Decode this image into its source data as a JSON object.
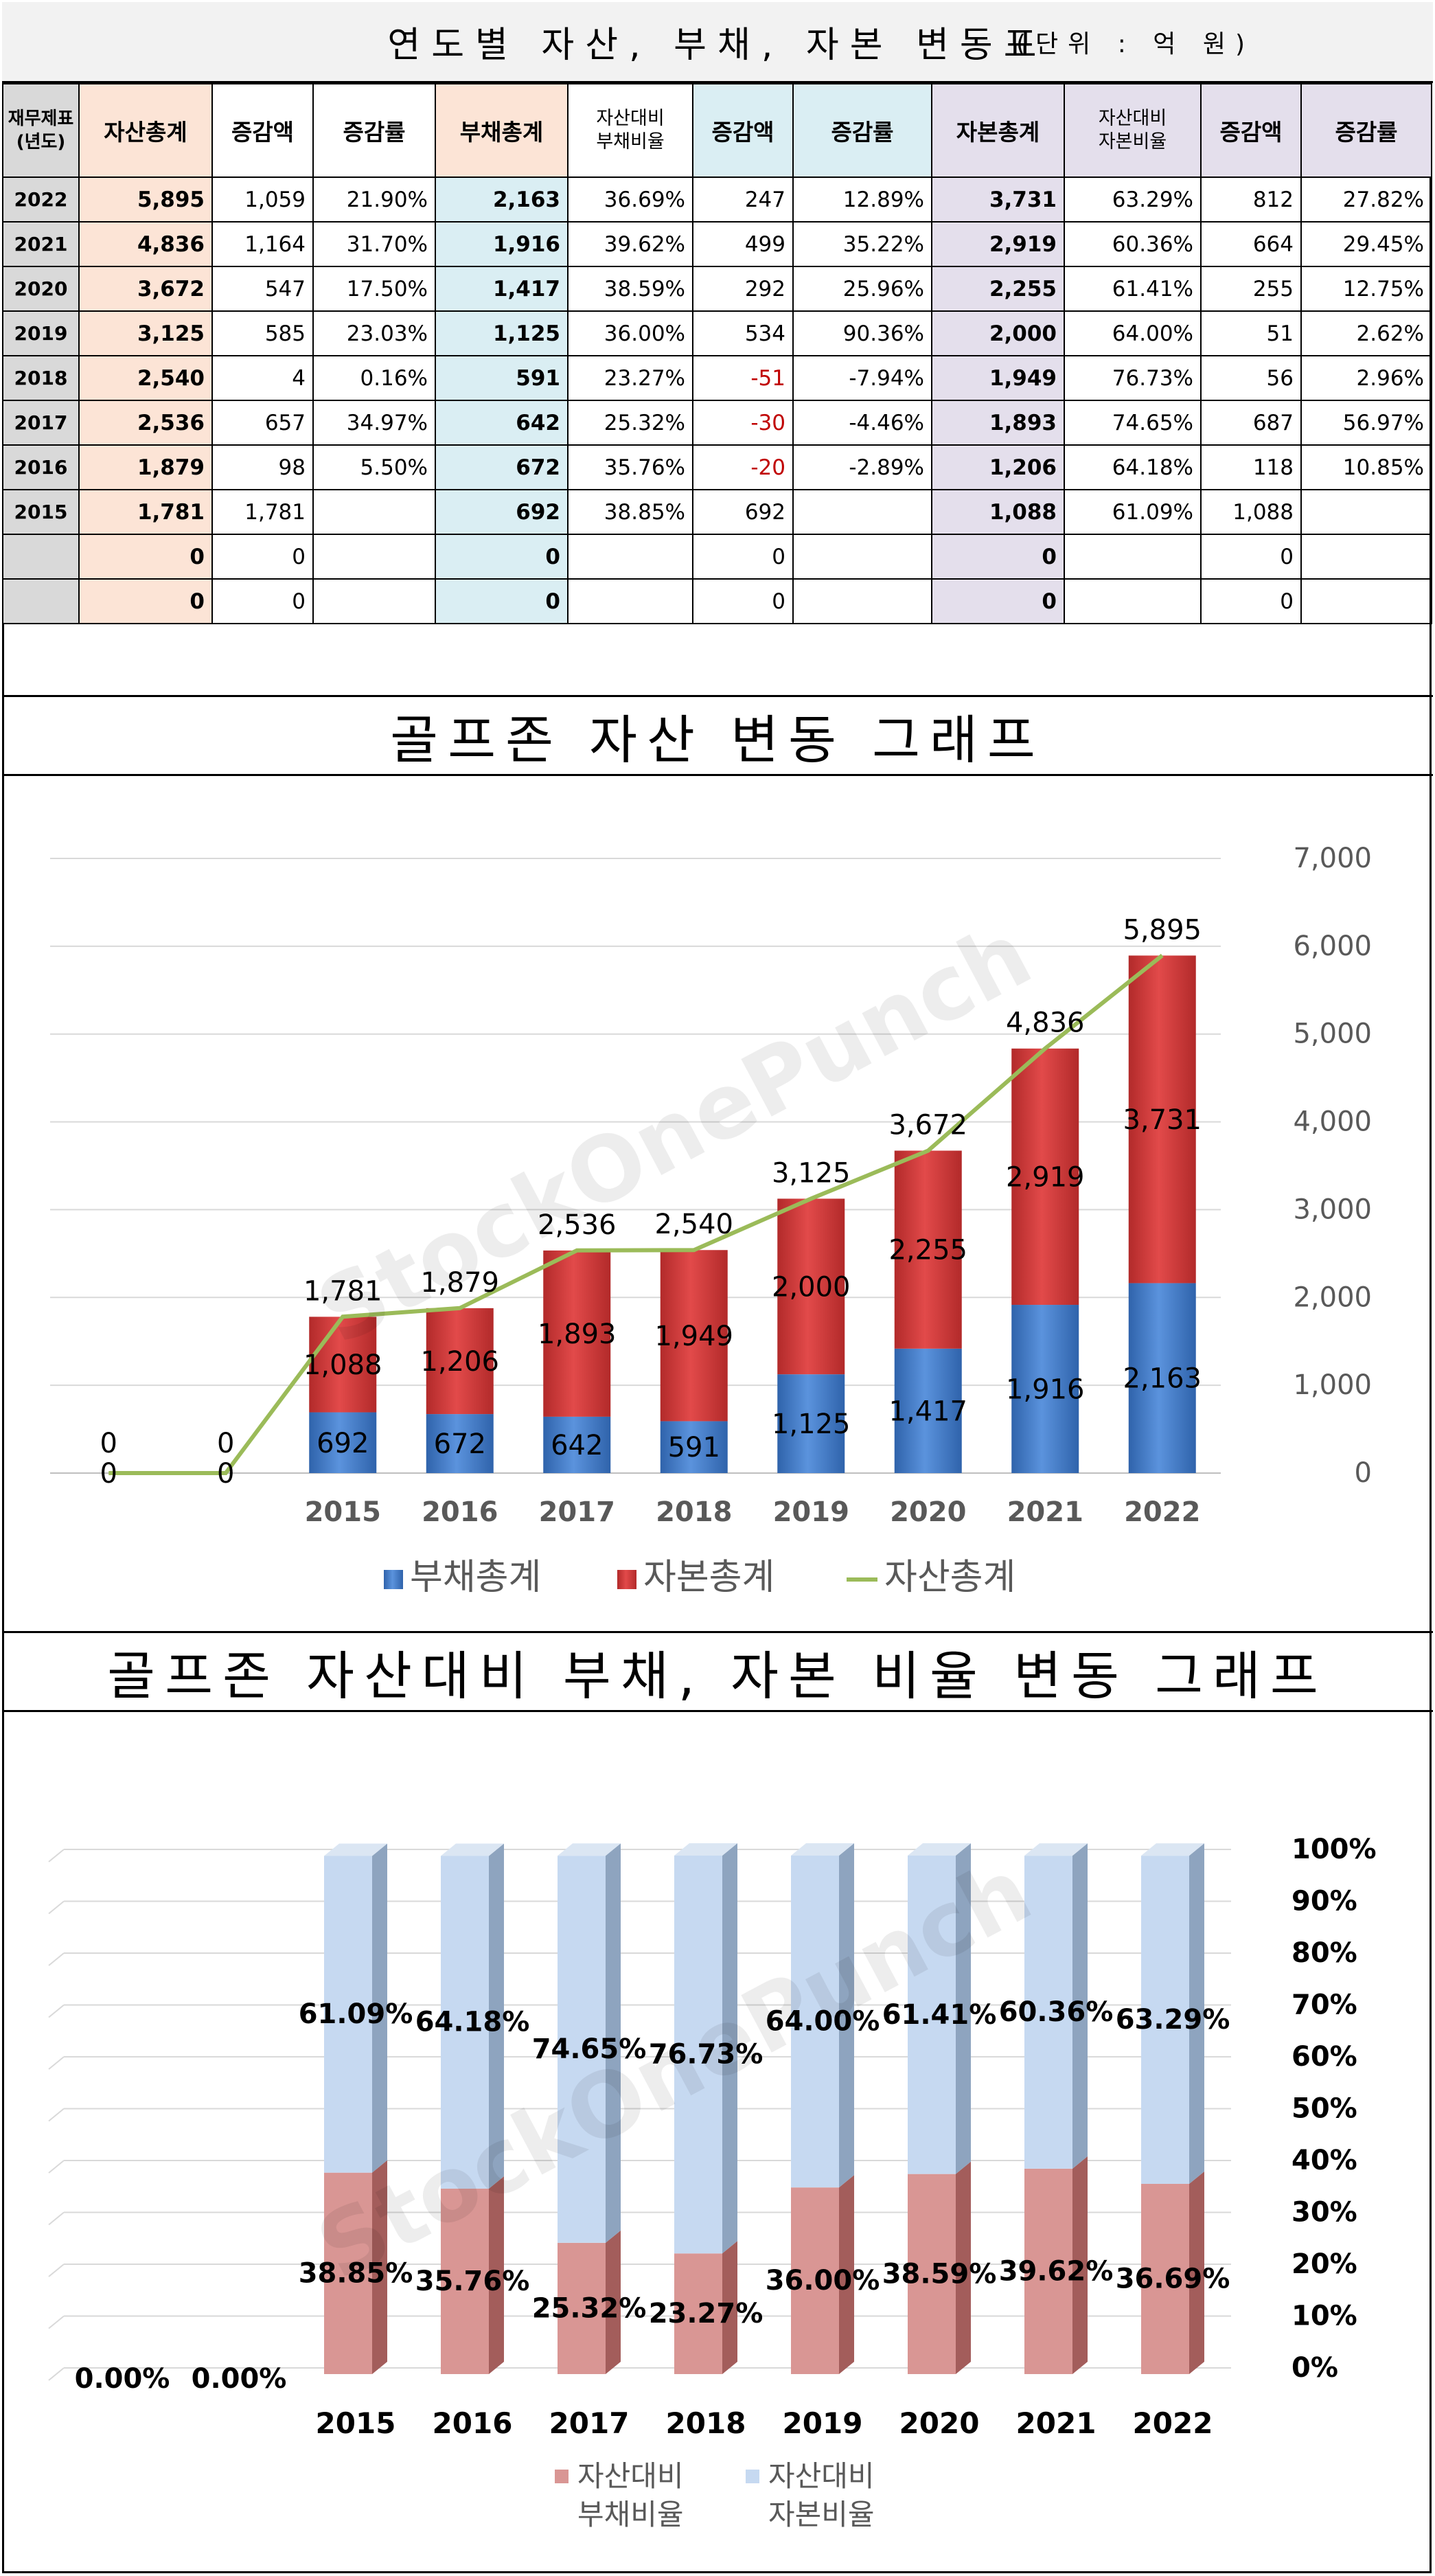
{
  "table": {
    "title": "연도별 자산, 부채, 자본 변동표",
    "unit": "(단위 : 억 원)",
    "headers": {
      "year": "재무제표\n(년도)",
      "total_assets": "자산총계",
      "asset_change": "증감액",
      "asset_rate": "증감률",
      "total_debt": "부채총계",
      "debt_ratio": "자산대비\n부채비율",
      "debt_change": "증감액",
      "debt_rate": "증감률",
      "total_equity": "자본총계",
      "equity_ratio": "자산대비\n자본비율",
      "equity_change": "증감액",
      "equity_rate": "증감률"
    },
    "rows": [
      [
        "2022",
        "5,895",
        "1,059",
        "21.90%",
        "2,163",
        "36.69%",
        "247",
        "12.89%",
        "3,731",
        "63.29%",
        "812",
        "27.82%"
      ],
      [
        "2021",
        "4,836",
        "1,164",
        "31.70%",
        "1,916",
        "39.62%",
        "499",
        "35.22%",
        "2,919",
        "60.36%",
        "664",
        "29.45%"
      ],
      [
        "2020",
        "3,672",
        "547",
        "17.50%",
        "1,417",
        "38.59%",
        "292",
        "25.96%",
        "2,255",
        "61.41%",
        "255",
        "12.75%"
      ],
      [
        "2019",
        "3,125",
        "585",
        "23.03%",
        "1,125",
        "36.00%",
        "534",
        "90.36%",
        "2,000",
        "64.00%",
        "51",
        "2.62%"
      ],
      [
        "2018",
        "2,540",
        "4",
        "0.16%",
        "591",
        "23.27%",
        "-51",
        "-7.94%",
        "1,949",
        "76.73%",
        "56",
        "2.96%"
      ],
      [
        "2017",
        "2,536",
        "657",
        "34.97%",
        "642",
        "25.32%",
        "-30",
        "-4.46%",
        "1,893",
        "74.65%",
        "687",
        "56.97%"
      ],
      [
        "2016",
        "1,879",
        "98",
        "5.50%",
        "672",
        "35.76%",
        "-20",
        "-2.89%",
        "1,206",
        "64.18%",
        "118",
        "10.85%"
      ],
      [
        "2015",
        "1,781",
        "1,781",
        "",
        "692",
        "38.85%",
        "692",
        "",
        "1,088",
        "61.09%",
        "1,088",
        ""
      ],
      [
        "",
        "0",
        "0",
        "",
        "0",
        "",
        "0",
        "",
        "0",
        "",
        "0",
        ""
      ],
      [
        "",
        "0",
        "0",
        "",
        "0",
        "",
        "0",
        "",
        "0",
        "",
        "0",
        ""
      ]
    ]
  },
  "chart1": {
    "title": "골프존 자산 변동 그래프",
    "legend": {
      "debt": "부채총계",
      "equity": "자본총계",
      "assets": "자산총계"
    },
    "colors": {
      "debt": "#4a7fc8",
      "equity": "#d23b3b",
      "assets": "#9bbb59"
    }
  },
  "chart2": {
    "title": "골프존 자산대비 부채, 자본 비율 변동 그래프",
    "legend": {
      "debt_ratio": "자산대비\n부채비율",
      "equity_ratio": "자산대비\n자본비율"
    },
    "colors": {
      "debt_ratio": "#d99694",
      "equity_ratio": "#c6d9f1"
    }
  },
  "watermark": "StockOnePunch",
  "chart_data": [
    {
      "type": "bar",
      "stacked": true,
      "title": "골프존 자산 변동 그래프",
      "categories": [
        "",
        "",
        "2015",
        "2016",
        "2017",
        "2018",
        "2019",
        "2020",
        "2021",
        "2022"
      ],
      "series": [
        {
          "name": "부채총계",
          "kind": "bar",
          "values": [
            0,
            0,
            692,
            672,
            642,
            591,
            1125,
            1417,
            1916,
            2163
          ]
        },
        {
          "name": "자본총계",
          "kind": "bar",
          "values": [
            0,
            0,
            1088,
            1206,
            1893,
            1949,
            2000,
            2255,
            2919,
            3731
          ]
        },
        {
          "name": "자산총계",
          "kind": "line",
          "values": [
            0,
            0,
            1781,
            1879,
            2536,
            2540,
            3125,
            3672,
            4836,
            5895
          ]
        }
      ],
      "ylim": [
        0,
        7000
      ],
      "yticks": [
        "0",
        "1,000",
        "2,000",
        "3,000",
        "4,000",
        "5,000",
        "6,000",
        "7,000"
      ],
      "grid": true,
      "legend_position": "bottom"
    },
    {
      "type": "bar",
      "stacked": true,
      "percent": true,
      "title": "골프존 자산대비 부채, 자본 비율 변동 그래프",
      "categories": [
        "",
        "",
        "2015",
        "2016",
        "2017",
        "2018",
        "2019",
        "2020",
        "2021",
        "2022"
      ],
      "series": [
        {
          "name": "자산대비 부채비율",
          "values": [
            0,
            0,
            38.85,
            35.76,
            25.32,
            23.27,
            36.0,
            38.59,
            39.62,
            36.69
          ]
        },
        {
          "name": "자산대비 자본비율",
          "values": [
            0,
            0,
            61.09,
            64.18,
            74.65,
            76.73,
            64.0,
            61.41,
            60.36,
            63.29
          ]
        }
      ],
      "labels": [
        "0.00%",
        "0.00%",
        "",
        "",
        "",
        "",
        "",
        "",
        "",
        ""
      ],
      "ylim": [
        0,
        100
      ],
      "yticks": [
        "0%",
        "10%",
        "20%",
        "30%",
        "40%",
        "50%",
        "60%",
        "70%",
        "80%",
        "90%",
        "100%"
      ],
      "grid": true,
      "legend_position": "bottom"
    }
  ]
}
